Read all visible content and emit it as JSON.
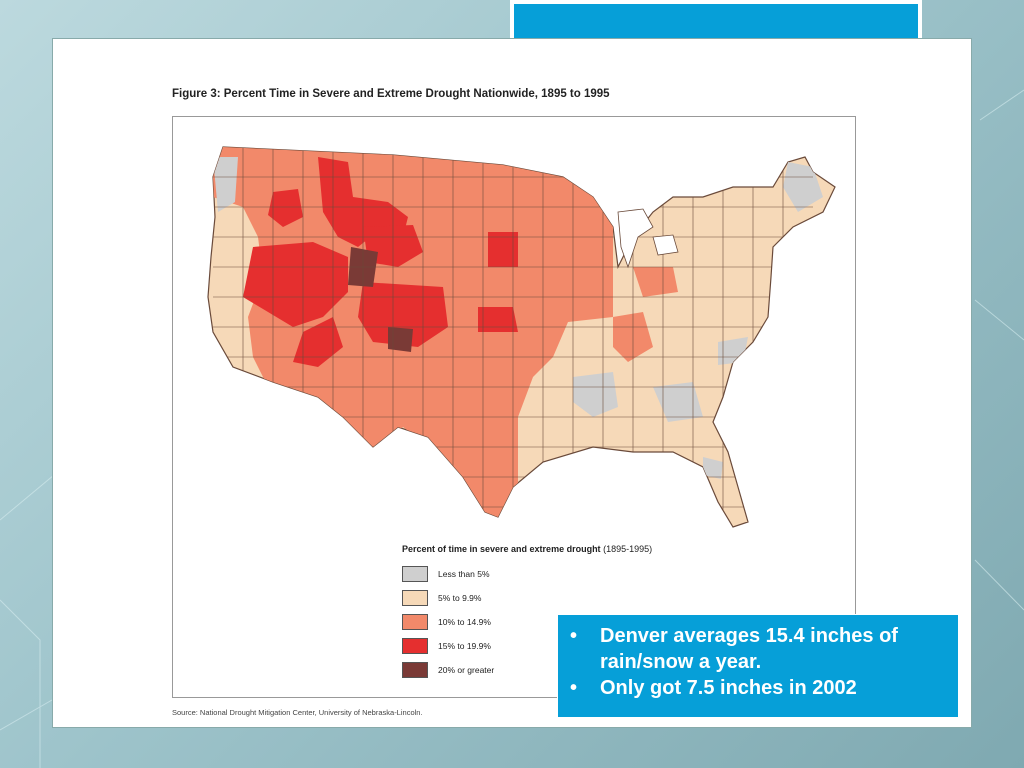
{
  "figure": {
    "title": "Figure 3:  Percent Time in Severe and Extreme Drought Nationwide, 1895 to 1995",
    "source": "Source: National Drought Mitigation Center, University of Nebraska-Lincoln."
  },
  "legend": {
    "title_bold": "Percent of time in severe and extreme drought",
    "title_range": "(1895-1995)",
    "items": [
      {
        "label": "Less than 5%",
        "color": "#cfcfcf"
      },
      {
        "label": "5% to 9.9%",
        "color": "#f6d9b8"
      },
      {
        "label": "10% to 14.9%",
        "color": "#f2896a"
      },
      {
        "label": "15% to 19.9%",
        "color": "#e52f2f"
      },
      {
        "label": "20% or greater",
        "color": "#7a3a36"
      }
    ]
  },
  "callout": {
    "bullets": [
      "Denver averages 15.4 inches of rain/snow a year.",
      "Only got 7.5 inches in 2002"
    ],
    "bullet_symbol": "•"
  },
  "colors": {
    "accent_blue": "#069fd8",
    "less_than_5": "#cfcfcf",
    "five_to_10": "#f6d9b8",
    "ten_to_15": "#f2896a",
    "fifteen_to_20": "#e52f2f",
    "twenty_plus": "#7a3a36"
  }
}
